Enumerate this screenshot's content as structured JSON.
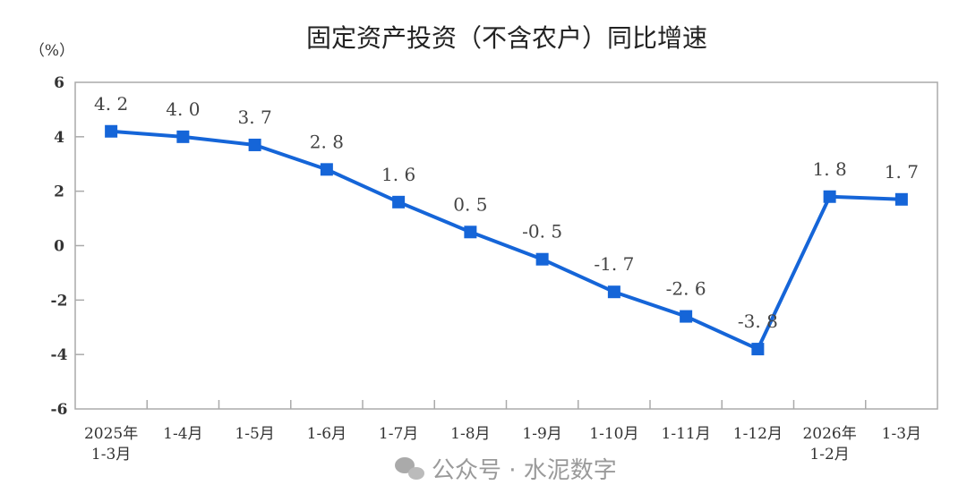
{
  "chart_data": {
    "type": "line",
    "title": "固定资产投资（不含农户）同比增速",
    "ylabel": "（%）",
    "xlabel": "",
    "categories": [
      "2025年\n1-3月",
      "1-4月",
      "1-5月",
      "1-6月",
      "1-7月",
      "1-8月",
      "1-9月",
      "1-10月",
      "1-11月",
      "1-12月",
      "2026年\n1-2月",
      "1-3月"
    ],
    "series": [
      {
        "values": [
          4.2,
          4.0,
          3.7,
          2.8,
          1.6,
          0.5,
          -0.5,
          -1.7,
          -2.6,
          -3.8,
          1.8,
          1.7
        ]
      }
    ],
    "data_labels": [
      "4.2",
      "4.0",
      "3.7",
      "2.8",
      "1.6",
      "0.5",
      "-0.5",
      "-1.7",
      "-2.6",
      "-3.8",
      "1.8",
      "1.7"
    ],
    "ylim": [
      -6,
      6
    ],
    "yticks": [
      -6,
      -4,
      -2,
      0,
      2,
      4,
      6
    ],
    "grid": false,
    "marker": "square",
    "color": "#1565d8"
  },
  "watermark": "公众号 · 水泥数字"
}
